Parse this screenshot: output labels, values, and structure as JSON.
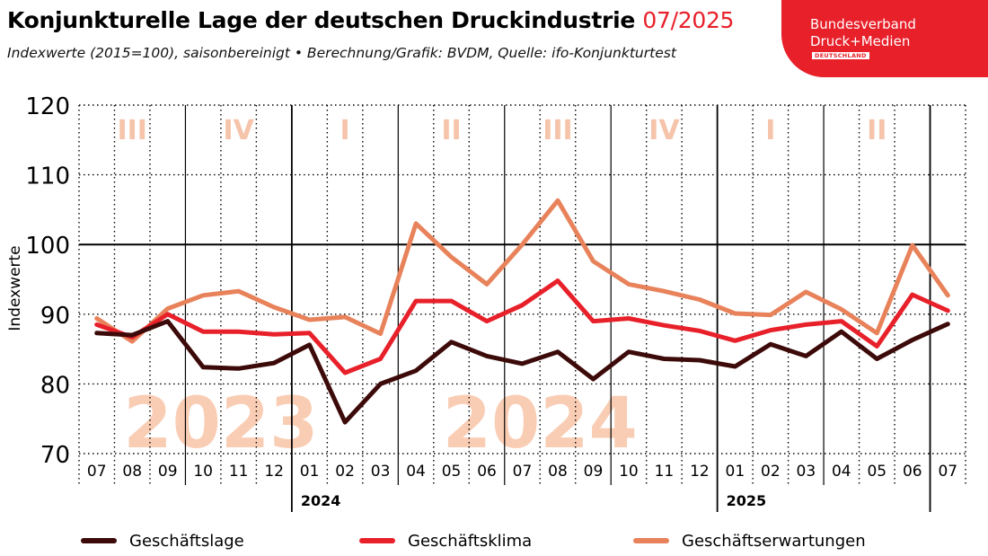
{
  "header": {
    "title_main": "Konjunkturelle Lage der deutschen Druckindustrie",
    "title_date": "07/2025",
    "subtitle": "Indexwerte (2015=100), saisonbereinigt • Berechnung/Grafik: BVDM, Quelle: ifo-Konjunkturtest"
  },
  "logo": {
    "line1": "Bundesverband",
    "line2": "Druck+Medien",
    "line3": "DEUTSCHLAND"
  },
  "colors": {
    "geschaeftslage": "#3d0a0a",
    "geschaeftsklima": "#e8202a",
    "geschaeftserwartungen": "#e8825a",
    "quarter_label": "#f5c4aa",
    "year_watermark": "#f9cdb4"
  },
  "chart_data": {
    "type": "line",
    "ylabel": "Indexwerte",
    "ylim": [
      70,
      120
    ],
    "yticks": [
      70,
      80,
      90,
      100,
      110,
      120
    ],
    "grid": true,
    "reference_line": 100,
    "categories": [
      "07",
      "08",
      "09",
      "10",
      "11",
      "12",
      "01",
      "02",
      "03",
      "04",
      "05",
      "06",
      "07",
      "08",
      "09",
      "10",
      "11",
      "12",
      "01",
      "02",
      "03",
      "04",
      "05",
      "06",
      "07"
    ],
    "year_labels": [
      {
        "label": "2024",
        "at_index": 6
      },
      {
        "label": "2025",
        "at_index": 18
      }
    ],
    "year_watermarks": [
      {
        "label": "2023",
        "center_index": 3.5
      },
      {
        "label": "2024",
        "center_index": 12.5
      }
    ],
    "quarter_labels": [
      {
        "label": "III",
        "center_index": 1
      },
      {
        "label": "IV",
        "center_index": 4
      },
      {
        "label": "I",
        "center_index": 7
      },
      {
        "label": "II",
        "center_index": 10
      },
      {
        "label": "III",
        "center_index": 13
      },
      {
        "label": "IV",
        "center_index": 16
      },
      {
        "label": "I",
        "center_index": 19
      },
      {
        "label": "II",
        "center_index": 22
      }
    ],
    "series": [
      {
        "name": "Geschäftslage",
        "color_key": "geschaeftslage",
        "values": [
          87.3,
          87.0,
          89.0,
          82.4,
          82.2,
          83.0,
          85.6,
          74.5,
          80.0,
          81.9,
          86.0,
          84.0,
          82.9,
          84.6,
          80.7,
          84.6,
          83.6,
          83.4,
          82.5,
          85.7,
          84.0,
          87.5,
          83.6,
          86.3,
          88.6
        ]
      },
      {
        "name": "Geschäftsklima",
        "color_key": "geschaeftsklima",
        "values": [
          88.5,
          86.7,
          90.0,
          87.5,
          87.5,
          87.1,
          87.3,
          81.6,
          83.6,
          91.9,
          91.9,
          89.0,
          91.3,
          94.8,
          89.0,
          89.4,
          88.4,
          87.6,
          86.2,
          87.7,
          88.5,
          89.0,
          85.4,
          92.8,
          90.5
        ]
      },
      {
        "name": "Geschäftserwartungen",
        "color_key": "geschaeftserwartungen",
        "values": [
          89.4,
          86.1,
          90.8,
          92.7,
          93.3,
          91.0,
          89.2,
          89.6,
          87.2,
          103.0,
          98.2,
          94.3,
          100.0,
          106.3,
          97.6,
          94.3,
          93.3,
          92.1,
          90.1,
          89.9,
          93.2,
          90.7,
          87.3,
          99.9,
          92.7
        ]
      }
    ]
  }
}
